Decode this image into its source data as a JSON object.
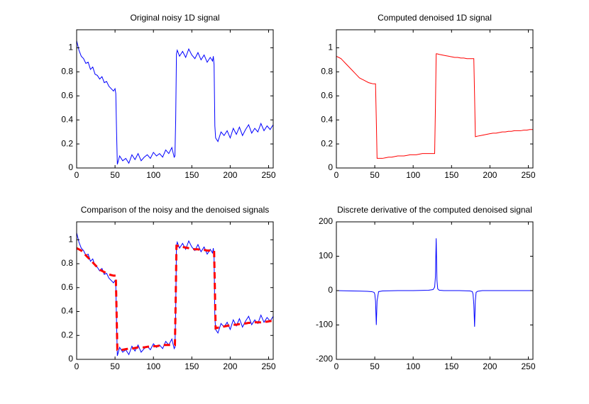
{
  "chart_data": [
    {
      "type": "line",
      "title": "Original noisy 1D signal",
      "x": [
        0,
        3,
        6,
        9,
        12,
        15,
        18,
        21,
        24,
        27,
        30,
        33,
        36,
        39,
        42,
        45,
        48,
        50,
        51,
        52,
        53,
        56,
        60,
        64,
        68,
        72,
        76,
        80,
        84,
        88,
        92,
        96,
        100,
        104,
        108,
        112,
        116,
        120,
        124,
        127,
        128,
        129,
        130,
        131,
        134,
        138,
        142,
        146,
        150,
        154,
        158,
        162,
        166,
        170,
        174,
        177,
        178,
        179,
        180,
        181,
        184,
        188,
        192,
        196,
        200,
        204,
        208,
        212,
        216,
        220,
        224,
        228,
        232,
        236,
        240,
        244,
        248,
        252,
        256
      ],
      "series": [
        {
          "color": "#0000ff",
          "values": [
            1.06,
            0.98,
            0.93,
            0.91,
            0.87,
            0.88,
            0.82,
            0.84,
            0.78,
            0.77,
            0.74,
            0.76,
            0.71,
            0.72,
            0.68,
            0.66,
            0.64,
            0.66,
            0.62,
            0.3,
            0.03,
            0.1,
            0.06,
            0.08,
            0.04,
            0.11,
            0.07,
            0.12,
            0.06,
            0.09,
            0.11,
            0.08,
            0.13,
            0.1,
            0.12,
            0.09,
            0.15,
            0.12,
            0.17,
            0.09,
            0.1,
            0.4,
            0.95,
            0.98,
            0.93,
            0.97,
            0.92,
            0.99,
            0.94,
            0.91,
            0.96,
            0.9,
            0.94,
            0.88,
            0.92,
            0.89,
            0.93,
            0.86,
            0.35,
            0.25,
            0.22,
            0.3,
            0.27,
            0.31,
            0.25,
            0.33,
            0.28,
            0.34,
            0.27,
            0.32,
            0.36,
            0.29,
            0.33,
            0.3,
            0.37,
            0.31,
            0.35,
            0.32,
            0.36
          ]
        }
      ],
      "xlim": [
        0,
        256
      ],
      "ylim": [
        0,
        1.15
      ],
      "xticks": [
        0,
        50,
        100,
        150,
        200,
        250
      ],
      "yticks": [
        0,
        0.2,
        0.4,
        0.6,
        0.8,
        1
      ]
    },
    {
      "type": "line",
      "title": "Computed denoised 1D signal",
      "x": [
        0,
        3,
        6,
        9,
        12,
        15,
        18,
        21,
        24,
        27,
        30,
        33,
        36,
        39,
        42,
        45,
        48,
        50,
        51,
        52,
        53,
        56,
        60,
        64,
        68,
        72,
        76,
        80,
        84,
        88,
        92,
        96,
        100,
        104,
        108,
        112,
        116,
        120,
        124,
        127,
        128,
        129,
        130,
        131,
        134,
        138,
        142,
        146,
        150,
        154,
        158,
        162,
        166,
        170,
        174,
        177,
        178,
        179,
        180,
        181,
        184,
        188,
        192,
        196,
        200,
        204,
        208,
        212,
        216,
        220,
        224,
        228,
        232,
        236,
        240,
        244,
        248,
        252,
        256
      ],
      "series": [
        {
          "color": "#ff0000",
          "values": [
            0.93,
            0.92,
            0.91,
            0.89,
            0.87,
            0.85,
            0.83,
            0.81,
            0.79,
            0.77,
            0.75,
            0.74,
            0.73,
            0.72,
            0.71,
            0.705,
            0.7,
            0.7,
            0.7,
            0.4,
            0.08,
            0.08,
            0.08,
            0.085,
            0.09,
            0.09,
            0.095,
            0.1,
            0.1,
            0.1,
            0.105,
            0.11,
            0.11,
            0.11,
            0.115,
            0.12,
            0.12,
            0.12,
            0.12,
            0.12,
            0.12,
            0.5,
            0.95,
            0.95,
            0.945,
            0.94,
            0.935,
            0.93,
            0.925,
            0.92,
            0.92,
            0.915,
            0.915,
            0.91,
            0.91,
            0.91,
            0.91,
            0.91,
            0.6,
            0.26,
            0.265,
            0.27,
            0.275,
            0.28,
            0.285,
            0.29,
            0.29,
            0.295,
            0.3,
            0.3,
            0.305,
            0.305,
            0.31,
            0.31,
            0.31,
            0.315,
            0.315,
            0.32,
            0.32
          ]
        }
      ],
      "xlim": [
        0,
        256
      ],
      "ylim": [
        0,
        1.15
      ],
      "xticks": [
        0,
        50,
        100,
        150,
        200,
        250
      ],
      "yticks": [
        0,
        0.2,
        0.4,
        0.6,
        0.8,
        1
      ]
    },
    {
      "type": "line",
      "title": "Comparison of the noisy and the denoised signals",
      "x": [
        0,
        3,
        6,
        9,
        12,
        15,
        18,
        21,
        24,
        27,
        30,
        33,
        36,
        39,
        42,
        45,
        48,
        50,
        51,
        52,
        53,
        56,
        60,
        64,
        68,
        72,
        76,
        80,
        84,
        88,
        92,
        96,
        100,
        104,
        108,
        112,
        116,
        120,
        124,
        127,
        128,
        129,
        130,
        131,
        134,
        138,
        142,
        146,
        150,
        154,
        158,
        162,
        166,
        170,
        174,
        177,
        178,
        179,
        180,
        181,
        184,
        188,
        192,
        196,
        200,
        204,
        208,
        212,
        216,
        220,
        224,
        228,
        232,
        236,
        240,
        244,
        248,
        252,
        256
      ],
      "series": [
        {
          "color": "#0000ff",
          "values": [
            1.06,
            0.98,
            0.93,
            0.91,
            0.87,
            0.88,
            0.82,
            0.84,
            0.78,
            0.77,
            0.74,
            0.76,
            0.71,
            0.72,
            0.68,
            0.66,
            0.64,
            0.66,
            0.62,
            0.3,
            0.03,
            0.1,
            0.06,
            0.08,
            0.04,
            0.11,
            0.07,
            0.12,
            0.06,
            0.09,
            0.11,
            0.08,
            0.13,
            0.1,
            0.12,
            0.09,
            0.15,
            0.12,
            0.17,
            0.09,
            0.1,
            0.4,
            0.95,
            0.98,
            0.93,
            0.97,
            0.92,
            0.99,
            0.94,
            0.91,
            0.96,
            0.9,
            0.94,
            0.88,
            0.92,
            0.89,
            0.93,
            0.86,
            0.35,
            0.25,
            0.22,
            0.3,
            0.27,
            0.31,
            0.25,
            0.33,
            0.28,
            0.34,
            0.27,
            0.32,
            0.36,
            0.29,
            0.33,
            0.3,
            0.37,
            0.31,
            0.35,
            0.32,
            0.36
          ]
        },
        {
          "color": "#ff0000",
          "dashed": true,
          "values": [
            0.93,
            0.92,
            0.91,
            0.89,
            0.87,
            0.85,
            0.83,
            0.81,
            0.79,
            0.77,
            0.75,
            0.74,
            0.73,
            0.72,
            0.71,
            0.705,
            0.7,
            0.7,
            0.7,
            0.4,
            0.08,
            0.08,
            0.08,
            0.085,
            0.09,
            0.09,
            0.095,
            0.1,
            0.1,
            0.1,
            0.105,
            0.11,
            0.11,
            0.11,
            0.115,
            0.12,
            0.12,
            0.12,
            0.12,
            0.12,
            0.12,
            0.5,
            0.95,
            0.95,
            0.945,
            0.94,
            0.935,
            0.93,
            0.925,
            0.92,
            0.92,
            0.915,
            0.915,
            0.91,
            0.91,
            0.91,
            0.91,
            0.91,
            0.6,
            0.26,
            0.265,
            0.27,
            0.275,
            0.28,
            0.285,
            0.29,
            0.29,
            0.295,
            0.3,
            0.3,
            0.305,
            0.305,
            0.31,
            0.31,
            0.31,
            0.315,
            0.315,
            0.32,
            0.32
          ]
        }
      ],
      "xlim": [
        0,
        256
      ],
      "ylim": [
        0,
        1.15
      ],
      "xticks": [
        0,
        50,
        100,
        150,
        200,
        250
      ],
      "yticks": [
        0,
        0.2,
        0.4,
        0.6,
        0.8,
        1
      ]
    },
    {
      "type": "line",
      "title": "Discrete derivative of the computed denoised signal",
      "x": [
        0,
        20,
        40,
        46,
        49,
        50,
        51,
        52,
        53,
        55,
        60,
        80,
        100,
        120,
        126,
        128,
        129,
        130,
        131,
        132,
        134,
        140,
        160,
        174,
        177,
        178,
        179,
        180,
        181,
        182,
        184,
        190,
        210,
        230,
        256
      ],
      "series": [
        {
          "color": "#0000ff",
          "values": [
            0,
            -1,
            -2,
            -3,
            -5,
            -10,
            -30,
            -100,
            -30,
            -3,
            -1,
            0,
            0,
            1,
            3,
            10,
            40,
            152,
            30,
            5,
            1,
            0,
            0,
            -1,
            -3,
            -10,
            -40,
            -105,
            -30,
            -5,
            -2,
            0,
            0,
            0,
            0
          ]
        }
      ],
      "xlim": [
        0,
        256
      ],
      "ylim": [
        -200,
        200
      ],
      "xticks": [
        0,
        50,
        100,
        150,
        200,
        250
      ],
      "yticks": [
        -200,
        -100,
        0,
        100,
        200
      ]
    }
  ]
}
